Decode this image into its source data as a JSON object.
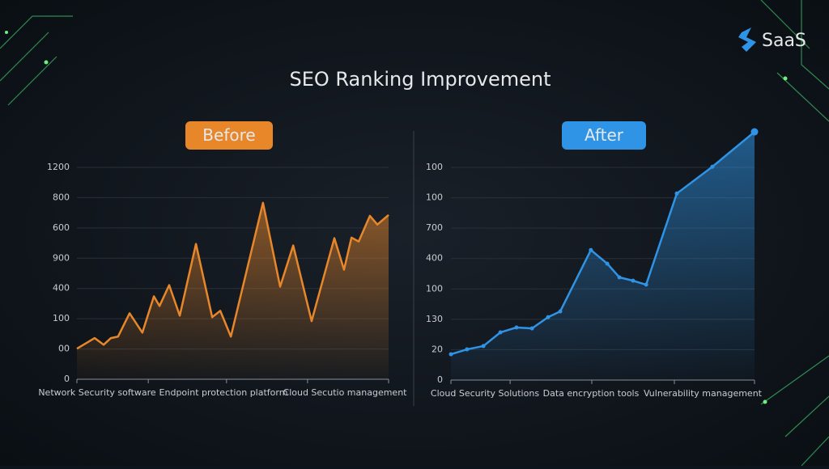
{
  "brand": "SaaS",
  "title": "SEO Ranking Improvement",
  "chart_data": [
    {
      "type": "line",
      "badge": "Before",
      "color": "#e8872a",
      "x_labels": [
        "Network Security software",
        "Endpoint protection platform",
        "Cloud Secutio management"
      ],
      "x": [
        0,
        5.7,
        8.6,
        10.9,
        13.2,
        16.9,
        21,
        24.7,
        26.5,
        29.6,
        33,
        38.2,
        43.4,
        46,
        49.4,
        59.7,
        65.2,
        69.4,
        75.3,
        82.6,
        85.7,
        88.1,
        90.4,
        94,
        96.4,
        100
      ],
      "values": [
        1.01,
        1.36,
        1.14,
        1.36,
        1.41,
        2.18,
        1.54,
        2.74,
        2.42,
        3.11,
        2.1,
        4.47,
        2.05,
        2.26,
        1.41,
        5.83,
        3.06,
        4.42,
        1.92,
        4.66,
        3.62,
        4.68,
        4.55,
        5.4,
        5.11,
        5.43
      ],
      "xlim": [
        0,
        100
      ],
      "xticks": [
        0,
        22.9,
        48,
        74,
        100
      ],
      "ylim": [
        0,
        7
      ],
      "yticks": [
        {
          "value": 0,
          "label": "0"
        },
        {
          "value": 1,
          "label": "00"
        },
        {
          "value": 2,
          "label": "100"
        },
        {
          "value": 3,
          "label": "400"
        },
        {
          "value": 4,
          "label": "900"
        },
        {
          "value": 5,
          "label": "600"
        },
        {
          "value": 6,
          "label": "800"
        },
        {
          "value": 7,
          "label": "1200"
        }
      ],
      "grid": true
    },
    {
      "type": "line",
      "badge": "After",
      "color": "#2f94e6",
      "x_labels": [
        "Cloud Security Solutions",
        "Data encryption tools",
        "Vulnerability management"
      ],
      "x": [
        0,
        5.3,
        10.7,
        16.3,
        21.6,
        26.7,
        32,
        36,
        46.1,
        51.5,
        55.5,
        60,
        64.3,
        74.4,
        86.1,
        100
      ],
      "values": [
        0.85,
        1.01,
        1.12,
        1.57,
        1.73,
        1.7,
        2.07,
        2.26,
        4.28,
        3.83,
        3.38,
        3.27,
        3.14,
        6.14,
        7.02,
        8.17
      ],
      "xlim": [
        0,
        100
      ],
      "xticks": [
        0,
        19.5,
        46.4,
        73.6,
        100
      ],
      "ylim": [
        0,
        7
      ],
      "yticks": [
        {
          "value": 0,
          "label": "0"
        },
        {
          "value": 1,
          "label": "20"
        },
        {
          "value": 2,
          "label": "130"
        },
        {
          "value": 3,
          "label": "100"
        },
        {
          "value": 4,
          "label": "400"
        },
        {
          "value": 5,
          "label": "700"
        },
        {
          "value": 6,
          "label": "100"
        },
        {
          "value": 7,
          "label": "100"
        }
      ],
      "grid": true
    }
  ]
}
